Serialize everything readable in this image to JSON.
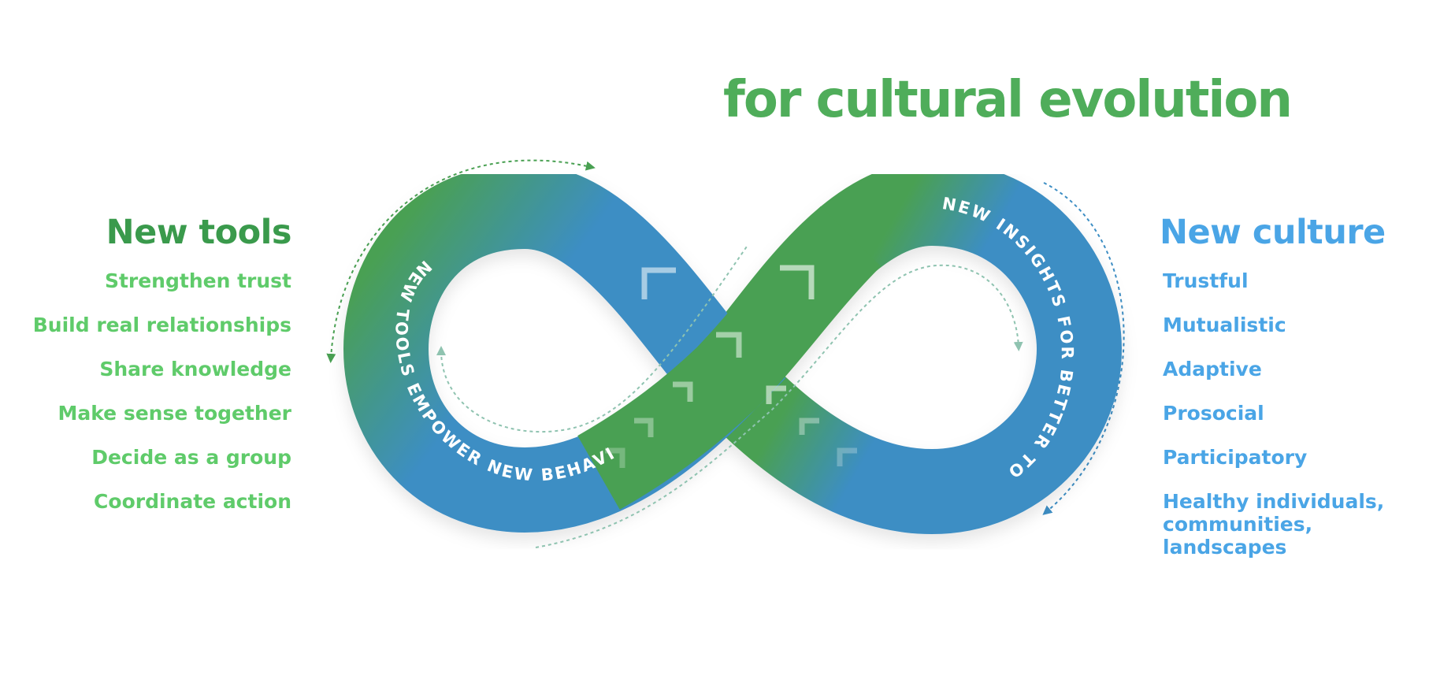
{
  "headline": "for cultural evolution",
  "left": {
    "title": "New tools",
    "items": [
      "Strengthen trust",
      "Build real relationships",
      "Share knowledge",
      "Make sense together",
      "Decide as a group",
      "Coordinate action"
    ]
  },
  "right": {
    "title": "New culture",
    "items": [
      "Trustful",
      "Mutualistic",
      "Adaptive",
      "Prosocial",
      "Participatory",
      "Healthy individuals,\ncommunities, landscapes"
    ]
  },
  "loop": {
    "left_label": "NEW TOOLS EMPOWER NEW BEHAVIORS",
    "right_label": "NEW INSIGHTS FOR BETTER TOOLS"
  },
  "colors": {
    "green": "#49a052",
    "blue": "#3d8ec4",
    "headline_green": "#4fad5a",
    "item_green": "#5fcb6a",
    "item_blue": "#4aa5e6"
  }
}
